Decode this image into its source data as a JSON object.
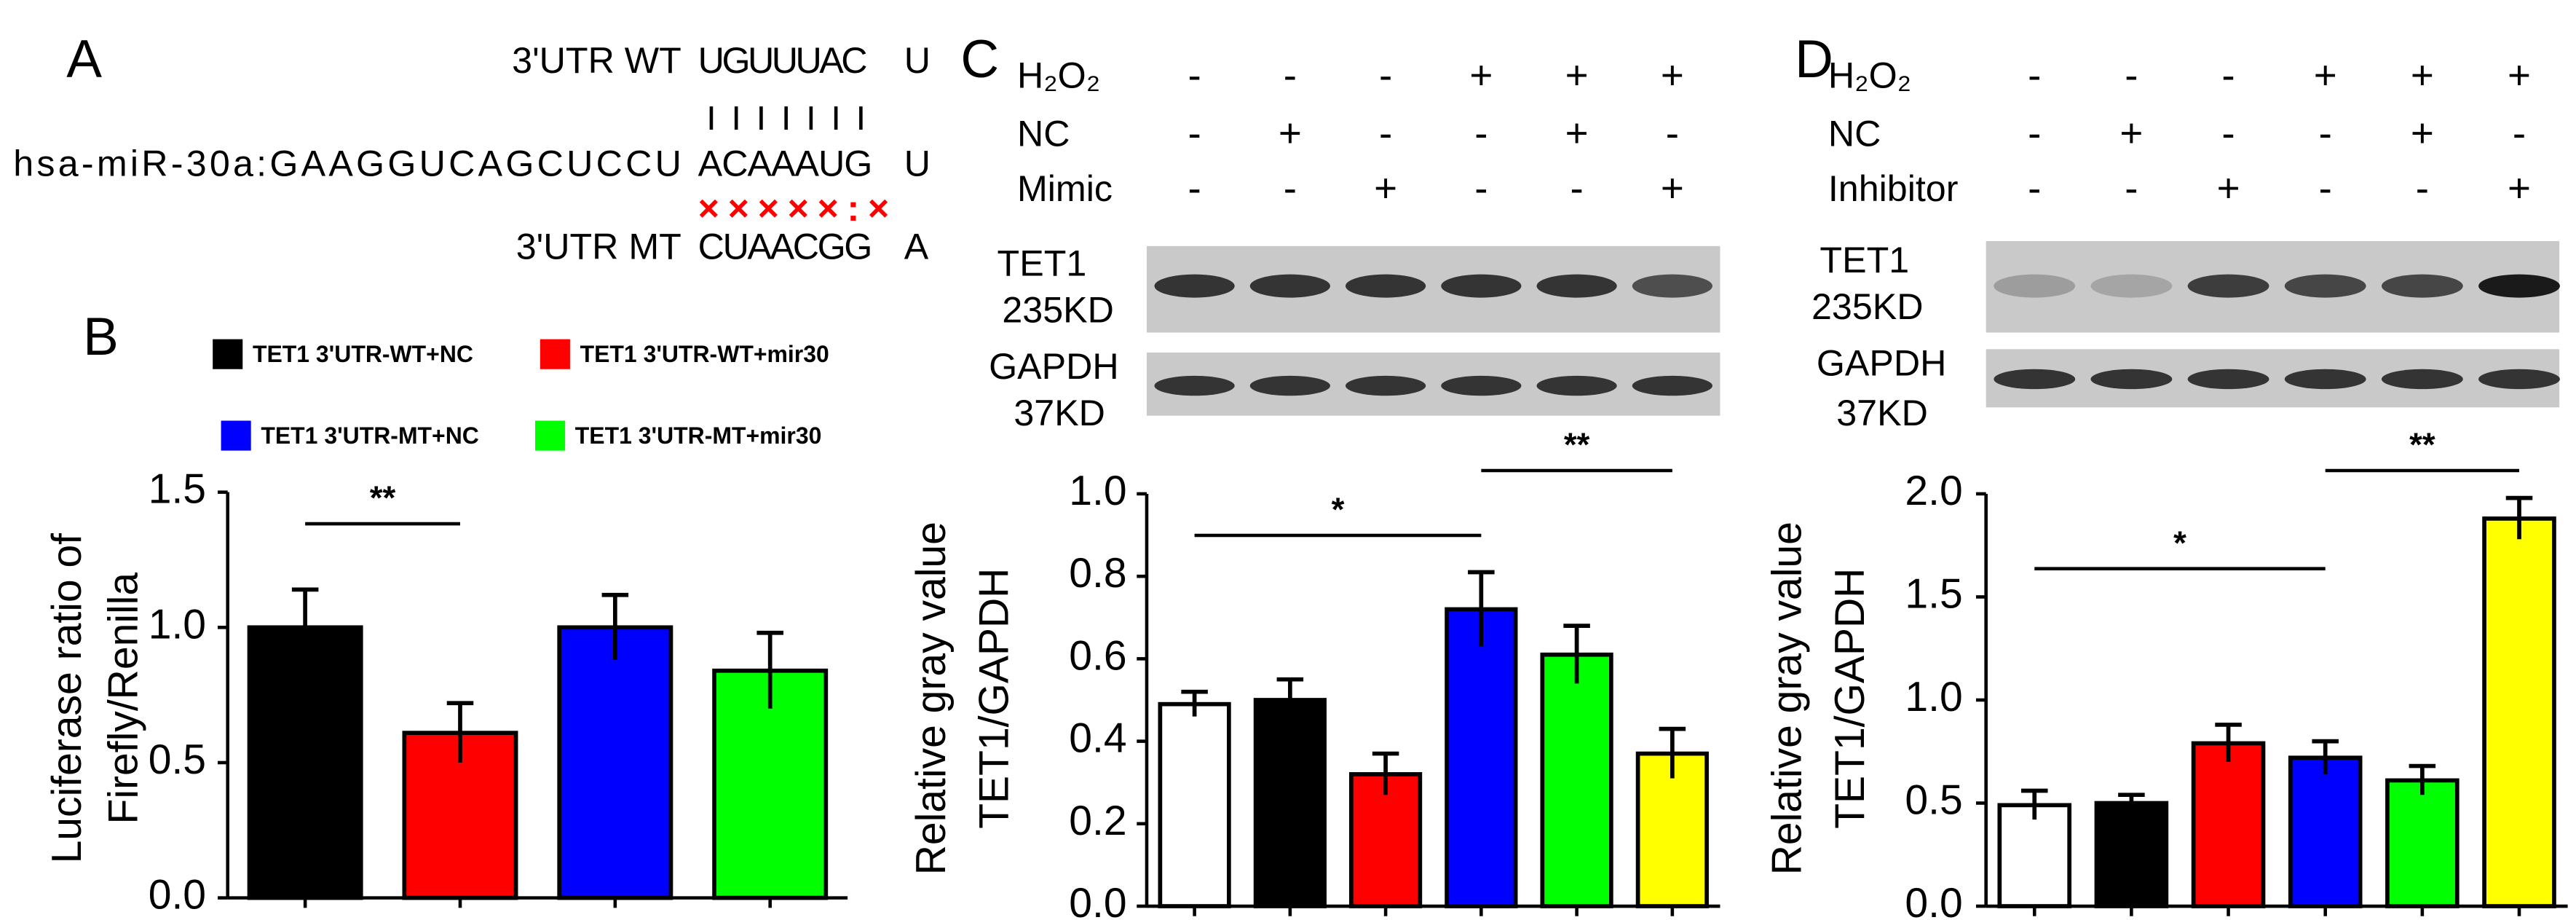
{
  "panel_a": {
    "panel": "A",
    "wt_label": "3'UTR WT",
    "wt_seq": "UGUUUAC",
    "wt_end": "U",
    "mir_label": "hsa-miR-30a:GAAGGUCAGCUCCU",
    "mir_seq": "ACAAAUG",
    "mir_end": "U",
    "mismatch": "×××××:×",
    "mt_label": "3'UTR MT",
    "mt_seq": "CUAACGG",
    "mt_end": "A"
  },
  "chart_data": [
    {
      "type": "bar",
      "panel": "B",
      "ylabel": [
        "Luciferase ratio of",
        "Firefly/Renilla"
      ],
      "categories": [
        "TET1 3'UTR-WT+NC",
        "TET1 3'UTR-WT+mir30",
        "TET1 3'UTR-MT+NC",
        "TET1 3'UTR-MT+mir30"
      ],
      "values": [
        1.0,
        0.61,
        1.0,
        0.84
      ],
      "errors": [
        0.14,
        0.11,
        0.12,
        0.14
      ],
      "colors": [
        "#000000",
        "#ff0000",
        "#0000ff",
        "#00ff00"
      ],
      "ylim": [
        0,
        1.5
      ],
      "yticks": [
        {
          "value": 0,
          "label": "0.0"
        },
        {
          "value": 0.5,
          "label": "0.5"
        },
        {
          "value": 1,
          "label": "1.0"
        },
        {
          "value": 1.5,
          "label": "1.5"
        }
      ],
      "annotations": [
        "**"
      ]
    },
    {
      "type": "bar",
      "panel": "C",
      "ylabel": [
        "Relative gray value",
        "TET1/GAPDH"
      ],
      "conditions": [
        {
          "name": "H₂O₂",
          "marks": [
            "-",
            "-",
            "-",
            "+",
            "+",
            "+"
          ]
        },
        {
          "name": "NC",
          "marks": [
            "-",
            "+",
            "-",
            "-",
            "+",
            "-"
          ]
        },
        {
          "name": "Mimic",
          "marks": [
            "-",
            "-",
            "+",
            "-",
            "-",
            "+"
          ]
        }
      ],
      "blot_labels": [
        "TET1",
        "235KD",
        "GAPDH",
        "37KD"
      ],
      "values": [
        0.49,
        0.5,
        0.32,
        0.72,
        0.61,
        0.37
      ],
      "errors": [
        0.03,
        0.05,
        0.05,
        0.09,
        0.07,
        0.06
      ],
      "colors": [
        "#ffffff",
        "#000000",
        "#ff0000",
        "#0000ff",
        "#00ff00",
        "#ffff00"
      ],
      "ylim": [
        0,
        1.0
      ],
      "yticks": [
        {
          "value": 0,
          "label": "0.0"
        },
        {
          "value": 0.2,
          "label": "0.2"
        },
        {
          "value": 0.4,
          "label": "0.4"
        },
        {
          "value": 0.6,
          "label": "0.6"
        },
        {
          "value": 0.8,
          "label": "0.8"
        },
        {
          "value": 1,
          "label": "1.0"
        }
      ],
      "annotations": [
        "*",
        "**"
      ]
    },
    {
      "type": "bar",
      "panel": "D",
      "ylabel": [
        "Relative gray value",
        "TET1/GAPDH"
      ],
      "conditions": [
        {
          "name": "H₂O₂",
          "marks": [
            "-",
            "-",
            "-",
            "+",
            "+",
            "+"
          ]
        },
        {
          "name": "NC",
          "marks": [
            "-",
            "+",
            "-",
            "-",
            "+",
            "-"
          ]
        },
        {
          "name": "Inhibitor",
          "marks": [
            "-",
            "-",
            "+",
            "-",
            "-",
            "+"
          ]
        }
      ],
      "blot_labels": [
        "TET1",
        "235KD",
        "GAPDH",
        "37KD"
      ],
      "values": [
        0.49,
        0.5,
        0.79,
        0.72,
        0.61,
        1.88
      ],
      "errors": [
        0.07,
        0.04,
        0.09,
        0.08,
        0.07,
        0.1
      ],
      "colors": [
        "#ffffff",
        "#000000",
        "#ff0000",
        "#0000ff",
        "#00ff00",
        "#ffff00"
      ],
      "ylim": [
        0,
        2.0
      ],
      "yticks": [
        {
          "value": 0,
          "label": "0.0"
        },
        {
          "value": 0.5,
          "label": "0.5"
        },
        {
          "value": 1,
          "label": "1.0"
        },
        {
          "value": 1.5,
          "label": "1.5"
        },
        {
          "value": 2,
          "label": "2.0"
        }
      ],
      "annotations": [
        "*",
        "**"
      ]
    }
  ]
}
